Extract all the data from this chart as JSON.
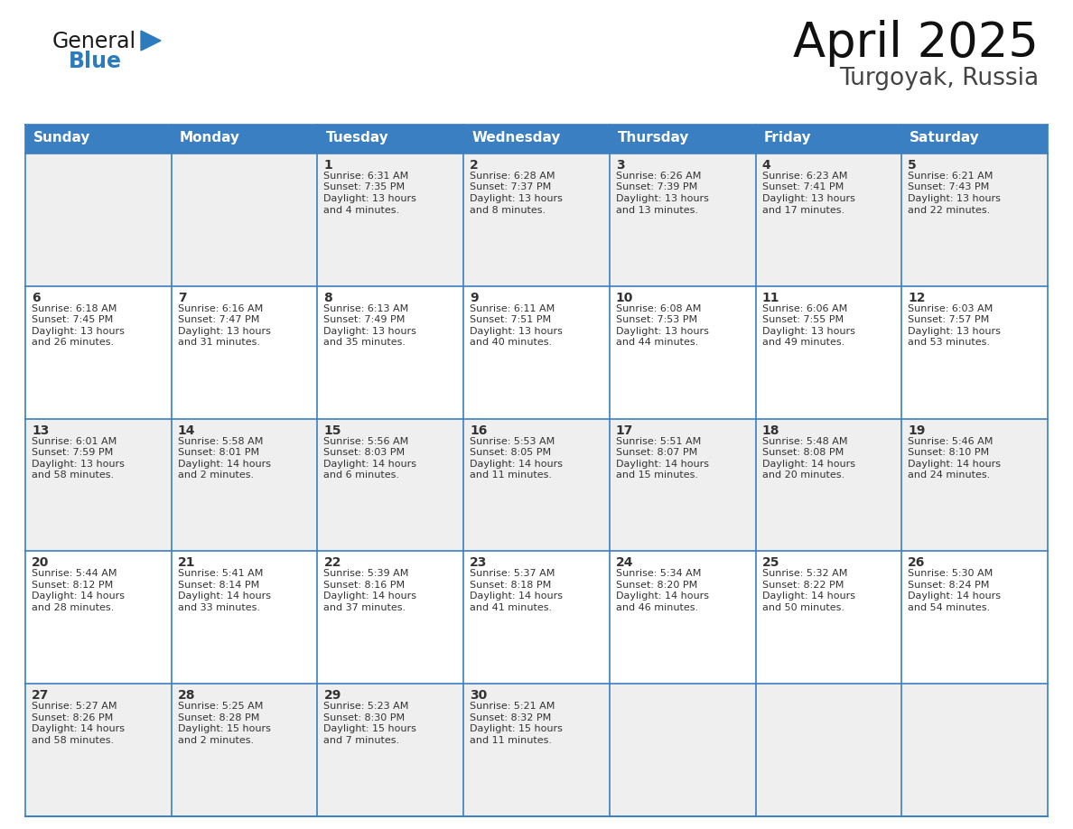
{
  "title": "April 2025",
  "subtitle": "Turgoyak, Russia",
  "header_bg": "#3A7FC1",
  "header_text_color": "#FFFFFF",
  "cell_bg_light": "#EFEFEF",
  "cell_bg_white": "#FFFFFF",
  "border_color": "#3A7FC1",
  "text_color": "#333333",
  "days_of_week": [
    "Sunday",
    "Monday",
    "Tuesday",
    "Wednesday",
    "Thursday",
    "Friday",
    "Saturday"
  ],
  "weeks": [
    [
      {
        "day": "",
        "info": ""
      },
      {
        "day": "",
        "info": ""
      },
      {
        "day": "1",
        "info": "Sunrise: 6:31 AM\nSunset: 7:35 PM\nDaylight: 13 hours\nand 4 minutes."
      },
      {
        "day": "2",
        "info": "Sunrise: 6:28 AM\nSunset: 7:37 PM\nDaylight: 13 hours\nand 8 minutes."
      },
      {
        "day": "3",
        "info": "Sunrise: 6:26 AM\nSunset: 7:39 PM\nDaylight: 13 hours\nand 13 minutes."
      },
      {
        "day": "4",
        "info": "Sunrise: 6:23 AM\nSunset: 7:41 PM\nDaylight: 13 hours\nand 17 minutes."
      },
      {
        "day": "5",
        "info": "Sunrise: 6:21 AM\nSunset: 7:43 PM\nDaylight: 13 hours\nand 22 minutes."
      }
    ],
    [
      {
        "day": "6",
        "info": "Sunrise: 6:18 AM\nSunset: 7:45 PM\nDaylight: 13 hours\nand 26 minutes."
      },
      {
        "day": "7",
        "info": "Sunrise: 6:16 AM\nSunset: 7:47 PM\nDaylight: 13 hours\nand 31 minutes."
      },
      {
        "day": "8",
        "info": "Sunrise: 6:13 AM\nSunset: 7:49 PM\nDaylight: 13 hours\nand 35 minutes."
      },
      {
        "day": "9",
        "info": "Sunrise: 6:11 AM\nSunset: 7:51 PM\nDaylight: 13 hours\nand 40 minutes."
      },
      {
        "day": "10",
        "info": "Sunrise: 6:08 AM\nSunset: 7:53 PM\nDaylight: 13 hours\nand 44 minutes."
      },
      {
        "day": "11",
        "info": "Sunrise: 6:06 AM\nSunset: 7:55 PM\nDaylight: 13 hours\nand 49 minutes."
      },
      {
        "day": "12",
        "info": "Sunrise: 6:03 AM\nSunset: 7:57 PM\nDaylight: 13 hours\nand 53 minutes."
      }
    ],
    [
      {
        "day": "13",
        "info": "Sunrise: 6:01 AM\nSunset: 7:59 PM\nDaylight: 13 hours\nand 58 minutes."
      },
      {
        "day": "14",
        "info": "Sunrise: 5:58 AM\nSunset: 8:01 PM\nDaylight: 14 hours\nand 2 minutes."
      },
      {
        "day": "15",
        "info": "Sunrise: 5:56 AM\nSunset: 8:03 PM\nDaylight: 14 hours\nand 6 minutes."
      },
      {
        "day": "16",
        "info": "Sunrise: 5:53 AM\nSunset: 8:05 PM\nDaylight: 14 hours\nand 11 minutes."
      },
      {
        "day": "17",
        "info": "Sunrise: 5:51 AM\nSunset: 8:07 PM\nDaylight: 14 hours\nand 15 minutes."
      },
      {
        "day": "18",
        "info": "Sunrise: 5:48 AM\nSunset: 8:08 PM\nDaylight: 14 hours\nand 20 minutes."
      },
      {
        "day": "19",
        "info": "Sunrise: 5:46 AM\nSunset: 8:10 PM\nDaylight: 14 hours\nand 24 minutes."
      }
    ],
    [
      {
        "day": "20",
        "info": "Sunrise: 5:44 AM\nSunset: 8:12 PM\nDaylight: 14 hours\nand 28 minutes."
      },
      {
        "day": "21",
        "info": "Sunrise: 5:41 AM\nSunset: 8:14 PM\nDaylight: 14 hours\nand 33 minutes."
      },
      {
        "day": "22",
        "info": "Sunrise: 5:39 AM\nSunset: 8:16 PM\nDaylight: 14 hours\nand 37 minutes."
      },
      {
        "day": "23",
        "info": "Sunrise: 5:37 AM\nSunset: 8:18 PM\nDaylight: 14 hours\nand 41 minutes."
      },
      {
        "day": "24",
        "info": "Sunrise: 5:34 AM\nSunset: 8:20 PM\nDaylight: 14 hours\nand 46 minutes."
      },
      {
        "day": "25",
        "info": "Sunrise: 5:32 AM\nSunset: 8:22 PM\nDaylight: 14 hours\nand 50 minutes."
      },
      {
        "day": "26",
        "info": "Sunrise: 5:30 AM\nSunset: 8:24 PM\nDaylight: 14 hours\nand 54 minutes."
      }
    ],
    [
      {
        "day": "27",
        "info": "Sunrise: 5:27 AM\nSunset: 8:26 PM\nDaylight: 14 hours\nand 58 minutes."
      },
      {
        "day": "28",
        "info": "Sunrise: 5:25 AM\nSunset: 8:28 PM\nDaylight: 15 hours\nand 2 minutes."
      },
      {
        "day": "29",
        "info": "Sunrise: 5:23 AM\nSunset: 8:30 PM\nDaylight: 15 hours\nand 7 minutes."
      },
      {
        "day": "30",
        "info": "Sunrise: 5:21 AM\nSunset: 8:32 PM\nDaylight: 15 hours\nand 11 minutes."
      },
      {
        "day": "",
        "info": ""
      },
      {
        "day": "",
        "info": ""
      },
      {
        "day": "",
        "info": ""
      }
    ]
  ],
  "logo_general_color": "#1A1A1A",
  "logo_blue_color": "#2B7BBD",
  "title_fontsize": 38,
  "subtitle_fontsize": 19,
  "header_fontsize": 11,
  "day_num_fontsize": 10,
  "info_fontsize": 8.0
}
